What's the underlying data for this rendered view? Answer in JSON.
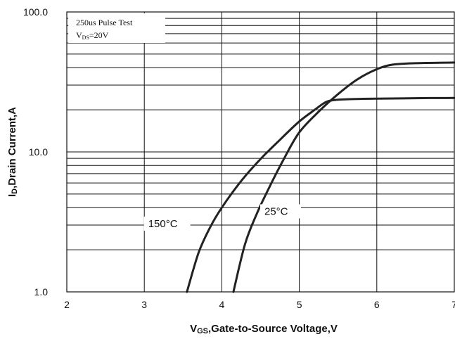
{
  "chart_data": {
    "type": "line",
    "xlabel_main": "V",
    "xlabel_sub": "GS",
    "xlabel_rest": ",Gate-to-Source  Voltage,V",
    "ylabel_main": "I",
    "ylabel_sub": "D",
    "ylabel_rest": ",Drain Current,A",
    "xlim": [
      2,
      7
    ],
    "ylim": [
      1,
      100
    ],
    "yscale": "log",
    "grid": true,
    "x_ticks": [
      "2",
      "3",
      "4",
      "5",
      "6",
      "7"
    ],
    "y_ticks": [
      "1.0",
      "10.0",
      "100.0"
    ],
    "notes": {
      "line1": "250us Pulse Test",
      "line2_main": "V",
      "line2_sub": "DS",
      "line2_rest": "=20V"
    },
    "series": [
      {
        "name": "150°C",
        "x": [
          3.55,
          3.7,
          3.85,
          4.0,
          4.25,
          4.5,
          4.75,
          5.0,
          5.2,
          5.35,
          5.5,
          5.75,
          6.0,
          6.5,
          7.0
        ],
        "y": [
          1.0,
          1.9,
          2.9,
          4.0,
          6.2,
          8.9,
          12.2,
          16.5,
          20.0,
          22.8,
          23.6,
          23.9,
          24.0,
          24.2,
          24.3
        ]
      },
      {
        "name": "25°C",
        "x": [
          4.15,
          4.3,
          4.45,
          4.6,
          4.8,
          5.0,
          5.25,
          5.5,
          5.75,
          6.0,
          6.2,
          6.5,
          7.0
        ],
        "y": [
          1.0,
          2.2,
          3.6,
          5.4,
          8.9,
          13.8,
          19.4,
          25.9,
          33.0,
          39.0,
          42.0,
          43.0,
          43.5
        ]
      }
    ]
  }
}
